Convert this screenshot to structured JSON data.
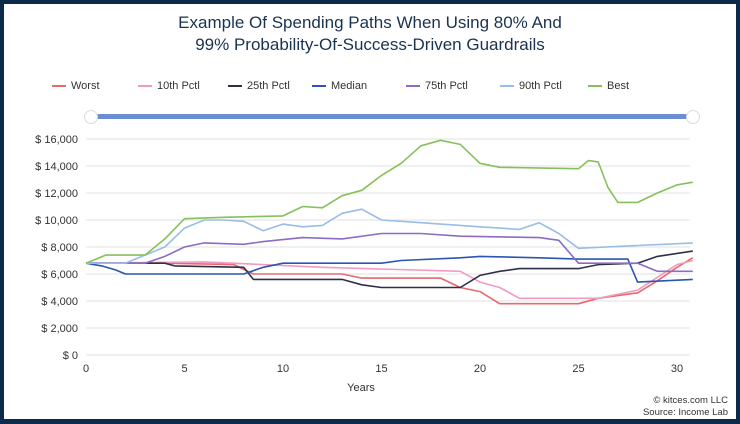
{
  "chart_data": {
    "type": "line",
    "title": "Example Of Spending Paths When Using 80% And 99% Probability-Of-Success-Driven Guardrails",
    "title_lines": [
      "Example Of Spending Paths When Using 80% And",
      "99% Probability-Of-Success-Driven Guardrails"
    ],
    "xlabel": "Years",
    "ylabel": "",
    "xlim": [
      0,
      31
    ],
    "ylim": [
      0,
      16000
    ],
    "x_ticks": [
      0,
      5,
      10,
      15,
      20,
      25,
      30
    ],
    "x_tick_labels": [
      "0",
      "5",
      "10",
      "15",
      "20",
      "25",
      "30"
    ],
    "y_ticks": [
      0,
      2000,
      4000,
      6000,
      8000,
      10000,
      12000,
      14000,
      16000
    ],
    "y_tick_labels": [
      "$ 0",
      "$ 2,000",
      "$ 4,000",
      "$ 6,000",
      "$ 8,000",
      "$ 10,000",
      "$ 12,000",
      "$ 14,000",
      "$ 16,000"
    ],
    "grid": true,
    "legend_position": "top",
    "series": [
      {
        "name": "Worst",
        "color": "#e8686b",
        "points": [
          [
            0,
            6800
          ],
          [
            4,
            6800
          ],
          [
            7.5,
            6700
          ],
          [
            8.5,
            6000
          ],
          [
            13,
            6000
          ],
          [
            14,
            5700
          ],
          [
            18,
            5700
          ],
          [
            19,
            5000
          ],
          [
            20,
            4700
          ],
          [
            21,
            3800
          ],
          [
            25,
            3800
          ],
          [
            26,
            4200
          ],
          [
            28,
            4600
          ],
          [
            29,
            5500
          ],
          [
            30,
            6500
          ],
          [
            30.8,
            7200
          ]
        ]
      },
      {
        "name": "10th Pctl",
        "color": "#f29ac2",
        "points": [
          [
            0,
            6800
          ],
          [
            6,
            6900
          ],
          [
            12,
            6500
          ],
          [
            19,
            6200
          ],
          [
            20,
            5400
          ],
          [
            21,
            5000
          ],
          [
            22,
            4200
          ],
          [
            26,
            4200
          ],
          [
            28,
            4800
          ],
          [
            30,
            6700
          ],
          [
            30.8,
            7000
          ]
        ]
      },
      {
        "name": "25th Pctl",
        "color": "#2e3048",
        "points": [
          [
            0,
            6800
          ],
          [
            4,
            6800
          ],
          [
            4.5,
            6600
          ],
          [
            8,
            6500
          ],
          [
            8.5,
            5600
          ],
          [
            13,
            5600
          ],
          [
            14,
            5200
          ],
          [
            15,
            5000
          ],
          [
            19,
            5000
          ],
          [
            20,
            5900
          ],
          [
            21,
            6200
          ],
          [
            22,
            6400
          ],
          [
            25,
            6400
          ],
          [
            26,
            6700
          ],
          [
            28,
            6800
          ],
          [
            29,
            7300
          ],
          [
            30.8,
            7700
          ]
        ]
      },
      {
        "name": "Median",
        "color": "#2a55b0",
        "points": [
          [
            0,
            6800
          ],
          [
            0.8,
            6600
          ],
          [
            1.5,
            6300
          ],
          [
            2,
            6000
          ],
          [
            8,
            6000
          ],
          [
            9,
            6500
          ],
          [
            10,
            6800
          ],
          [
            15,
            6800
          ],
          [
            16,
            7000
          ],
          [
            19,
            7200
          ],
          [
            20,
            7300
          ],
          [
            23,
            7200
          ],
          [
            25,
            7100
          ],
          [
            27.5,
            7100
          ],
          [
            28,
            5400
          ],
          [
            30.8,
            5600
          ]
        ]
      },
      {
        "name": "75th Pctl",
        "color": "#8a6cc4",
        "points": [
          [
            0,
            6800
          ],
          [
            3,
            6800
          ],
          [
            4,
            7300
          ],
          [
            5,
            8000
          ],
          [
            6,
            8300
          ],
          [
            8,
            8200
          ],
          [
            9,
            8400
          ],
          [
            11,
            8700
          ],
          [
            13,
            8600
          ],
          [
            15,
            9000
          ],
          [
            17,
            9000
          ],
          [
            19,
            8800
          ],
          [
            23,
            8700
          ],
          [
            24,
            8500
          ],
          [
            25,
            6800
          ],
          [
            28,
            6800
          ],
          [
            29,
            6200
          ],
          [
            30.8,
            6200
          ]
        ]
      },
      {
        "name": "90th Pctl",
        "color": "#97bde8",
        "points": [
          [
            0,
            6800
          ],
          [
            2,
            6800
          ],
          [
            4,
            8000
          ],
          [
            5,
            9400
          ],
          [
            6,
            10000
          ],
          [
            7,
            10000
          ],
          [
            8,
            9900
          ],
          [
            9,
            9200
          ],
          [
            10,
            9700
          ],
          [
            11,
            9500
          ],
          [
            12,
            9600
          ],
          [
            13,
            10500
          ],
          [
            14,
            10800
          ],
          [
            15,
            10000
          ],
          [
            17,
            9800
          ],
          [
            20,
            9500
          ],
          [
            22,
            9300
          ],
          [
            23,
            9800
          ],
          [
            24,
            9000
          ],
          [
            25,
            7900
          ],
          [
            30.8,
            8300
          ]
        ]
      },
      {
        "name": "Best",
        "color": "#86c05a",
        "points": [
          [
            0,
            6800
          ],
          [
            1,
            7400
          ],
          [
            3,
            7400
          ],
          [
            4,
            8600
          ],
          [
            5,
            10100
          ],
          [
            7,
            10200
          ],
          [
            10,
            10300
          ],
          [
            11,
            11000
          ],
          [
            12,
            10900
          ],
          [
            13,
            11800
          ],
          [
            14,
            12200
          ],
          [
            15,
            13300
          ],
          [
            16,
            14200
          ],
          [
            17,
            15500
          ],
          [
            18,
            15900
          ],
          [
            19,
            15600
          ],
          [
            20,
            14200
          ],
          [
            21,
            13900
          ],
          [
            25,
            13800
          ],
          [
            25.5,
            14400
          ],
          [
            26,
            14300
          ],
          [
            26.5,
            12400
          ],
          [
            27,
            11300
          ],
          [
            28,
            11300
          ],
          [
            29,
            12000
          ],
          [
            30,
            12600
          ],
          [
            30.8,
            12800
          ]
        ]
      }
    ]
  },
  "legend": [
    "Worst",
    "10th Pctl",
    "25th Pctl",
    "Median",
    "75th Pctl",
    "90th Pctl",
    "Best"
  ],
  "footer": {
    "copyright": "© kitces.com LLC",
    "source": "Source: Income Lab"
  }
}
